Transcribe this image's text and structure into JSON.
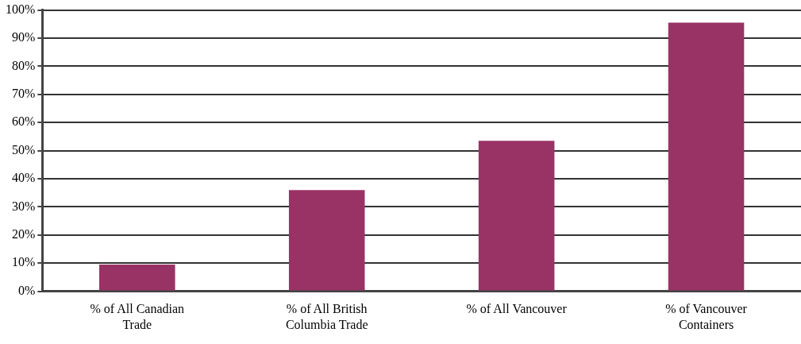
{
  "chart_data": {
    "type": "bar",
    "categories": [
      "% of All Canadian Trade",
      "% of All British Columbia Trade",
      "% of All Vancouver",
      "% of Vancouver Containers"
    ],
    "values": [
      9.5,
      36,
      53.5,
      95.5
    ],
    "color": "#993366",
    "ylim": [
      0,
      100
    ],
    "yticks": [
      {
        "value": 0,
        "label": "0%"
      },
      {
        "value": 10,
        "label": "10%"
      },
      {
        "value": 20,
        "label": "20%"
      },
      {
        "value": 30,
        "label": "30%"
      },
      {
        "value": 40,
        "label": "40%"
      },
      {
        "value": 50,
        "label": "50%"
      },
      {
        "value": 60,
        "label": "60%"
      },
      {
        "value": 70,
        "label": "70%"
      },
      {
        "value": 80,
        "label": "80%"
      },
      {
        "value": 90,
        "label": "90%"
      },
      {
        "value": 100,
        "label": "100%"
      }
    ],
    "grid": "y"
  }
}
